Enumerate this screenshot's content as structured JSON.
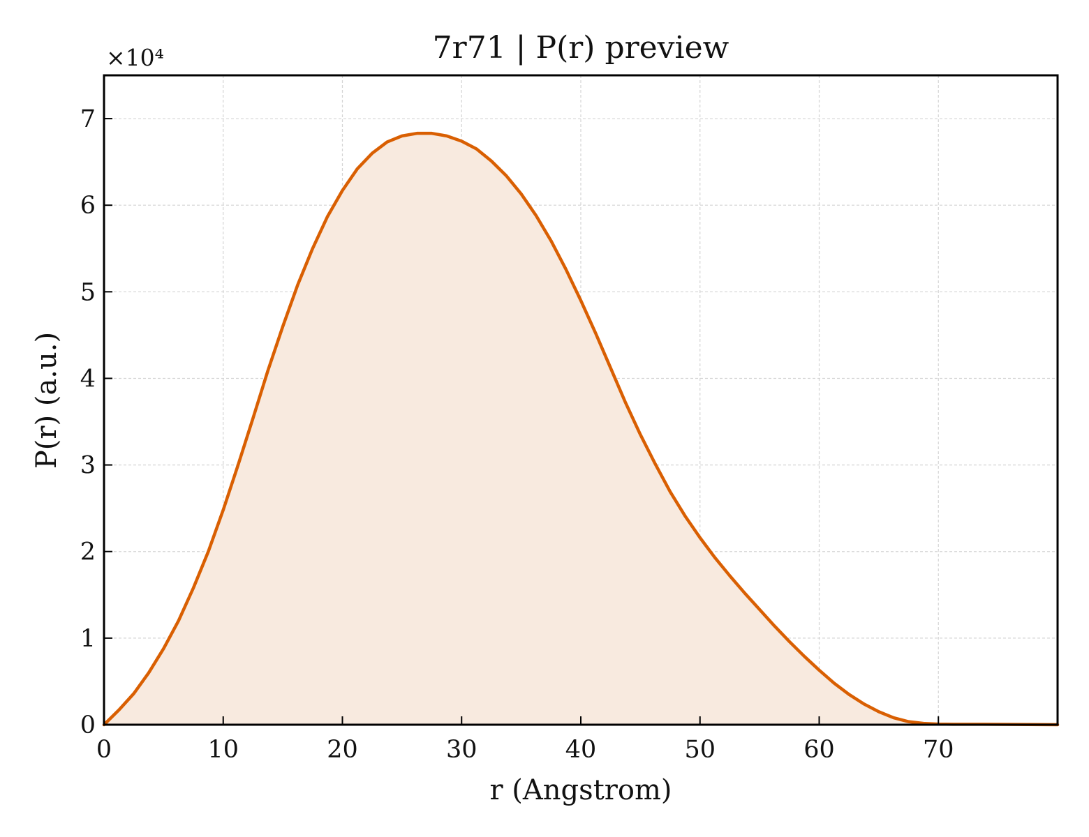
{
  "chart_data": {
    "type": "area",
    "title": "7r71 | P(r) preview",
    "xlabel": "r (Angstrom)",
    "ylabel": "P(r) (a.u.)",
    "y_multiplier_label": "×10⁴",
    "y_scale_factor": 10000,
    "xlim": [
      0,
      80
    ],
    "ylim": [
      0,
      75000
    ],
    "x_ticks": [
      0,
      10,
      20,
      30,
      40,
      50,
      60,
      70
    ],
    "y_ticks": [
      0,
      10000,
      20000,
      30000,
      40000,
      50000,
      60000,
      70000
    ],
    "y_tick_labels": [
      "0",
      "1",
      "2",
      "3",
      "4",
      "5",
      "6",
      "7"
    ],
    "grid": true,
    "line_color": "#d95f02",
    "fill_color": "#f8eadf",
    "series": [
      {
        "x": [
          0,
          1.25,
          2.5,
          3.75,
          5,
          6.25,
          7.5,
          8.75,
          10,
          11.25,
          12.5,
          13.75,
          15,
          16.25,
          17.5,
          18.75,
          20,
          21.25,
          22.5,
          23.75,
          25,
          26.25,
          27.5,
          28.75,
          30,
          31.25,
          32.5,
          33.75,
          35,
          36.25,
          37.5,
          38.75,
          40,
          41.25,
          42.5,
          43.75,
          45,
          46.25,
          47.5,
          48.75,
          50,
          51.25,
          52.5,
          53.75,
          55,
          56.25,
          57.5,
          58.75,
          60,
          61.25,
          62.5,
          63.75,
          65,
          66.25,
          67.5,
          68.75,
          70,
          71.25,
          72.5,
          73.75,
          75,
          76.25,
          77.5,
          78.75,
          80
        ],
        "y": [
          0,
          1700,
          3600,
          6000,
          8800,
          12000,
          15800,
          20000,
          24800,
          30000,
          35400,
          40900,
          46000,
          50800,
          55000,
          58700,
          61700,
          64200,
          66000,
          67300,
          68000,
          68300,
          68300,
          68000,
          67400,
          66500,
          65100,
          63400,
          61300,
          58800,
          55900,
          52600,
          49000,
          45200,
          41200,
          37200,
          33500,
          30100,
          26900,
          24100,
          21600,
          19300,
          17200,
          15200,
          13300,
          11400,
          9600,
          7900,
          6300,
          4800,
          3500,
          2400,
          1500,
          800,
          350,
          150,
          70,
          50,
          50,
          50,
          40,
          30,
          20,
          10,
          0
        ]
      }
    ]
  }
}
